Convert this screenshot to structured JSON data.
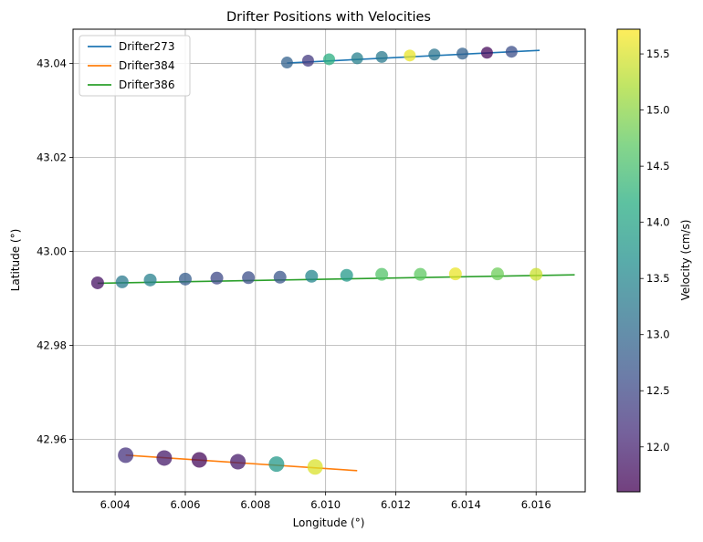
{
  "chart_data": {
    "type": "scatter",
    "title": "Drifter Positions with Velocities",
    "xlabel": "Longitude (°)",
    "ylabel": "Latitude (°)",
    "xlim": [
      6.0028,
      6.0174
    ],
    "ylim": [
      42.9488,
      43.0473
    ],
    "x_ticks": [
      6.004,
      6.006,
      6.008,
      6.01,
      6.012,
      6.014,
      6.016
    ],
    "x_tick_labels": [
      "6.004",
      "6.006",
      "6.008",
      "6.010",
      "6.012",
      "6.014",
      "6.016"
    ],
    "y_ticks": [
      42.96,
      42.98,
      43.0,
      43.02,
      43.04
    ],
    "y_tick_labels": [
      "42.96",
      "42.98",
      "43.00",
      "43.02",
      "43.04"
    ],
    "grid": true,
    "legend_position": "top-left",
    "colorbar": {
      "label": "Velocity (cm/s)",
      "range": [
        11.6,
        15.72
      ],
      "ticks": [
        12.0,
        12.5,
        13.0,
        13.5,
        14.0,
        14.5,
        15.0,
        15.5
      ],
      "tick_labels": [
        "12.0",
        "12.5",
        "13.0",
        "13.5",
        "14.0",
        "14.5",
        "15.0",
        "15.5"
      ],
      "colormap": "viridis"
    },
    "series": [
      {
        "name": "Drifter273",
        "color": "#1f77b4",
        "line": [
          [
            6.0089,
            43.0401
          ],
          [
            6.0161,
            43.0428
          ]
        ],
        "points": [
          {
            "x": 6.0089,
            "y": 43.0402,
            "v": 12.9,
            "s": 13
          },
          {
            "x": 6.0095,
            "y": 43.0406,
            "v": 12.3,
            "s": 13
          },
          {
            "x": 6.0101,
            "y": 43.0409,
            "v": 14.2,
            "s": 13
          },
          {
            "x": 6.0109,
            "y": 43.0411,
            "v": 13.4,
            "s": 13
          },
          {
            "x": 6.0116,
            "y": 43.0414,
            "v": 13.3,
            "s": 13
          },
          {
            "x": 6.0124,
            "y": 43.0417,
            "v": 15.6,
            "s": 13
          },
          {
            "x": 6.0131,
            "y": 43.0419,
            "v": 13.2,
            "s": 13
          },
          {
            "x": 6.0139,
            "y": 43.0421,
            "v": 12.9,
            "s": 13
          },
          {
            "x": 6.0146,
            "y": 43.0423,
            "v": 11.7,
            "s": 13
          },
          {
            "x": 6.0153,
            "y": 43.0425,
            "v": 12.6,
            "s": 13
          }
        ]
      },
      {
        "name": "Drifter384",
        "color": "#ff7f0e",
        "line": [
          [
            6.0043,
            42.9566
          ],
          [
            6.0109,
            42.9533
          ]
        ],
        "points": [
          {
            "x": 6.0043,
            "y": 42.9566,
            "v": 12.2,
            "s": 17
          },
          {
            "x": 6.0054,
            "y": 42.956,
            "v": 11.9,
            "s": 17
          },
          {
            "x": 6.0064,
            "y": 42.9556,
            "v": 11.7,
            "s": 17
          },
          {
            "x": 6.0075,
            "y": 42.9552,
            "v": 11.9,
            "s": 17
          },
          {
            "x": 6.0086,
            "y": 42.9547,
            "v": 13.8,
            "s": 17
          },
          {
            "x": 6.0097,
            "y": 42.9541,
            "v": 15.5,
            "s": 17
          }
        ]
      },
      {
        "name": "Drifter386",
        "color": "#2ca02c",
        "line": [
          [
            6.0035,
            42.9932
          ],
          [
            6.0171,
            42.995
          ]
        ],
        "points": [
          {
            "x": 6.0035,
            "y": 42.9933,
            "v": 11.8,
            "s": 14
          },
          {
            "x": 6.0042,
            "y": 42.9935,
            "v": 13.3,
            "s": 14
          },
          {
            "x": 6.005,
            "y": 42.9939,
            "v": 13.4,
            "s": 14
          },
          {
            "x": 6.006,
            "y": 42.9941,
            "v": 12.8,
            "s": 14
          },
          {
            "x": 6.0069,
            "y": 42.9943,
            "v": 12.5,
            "s": 14
          },
          {
            "x": 6.0078,
            "y": 42.9944,
            "v": 12.6,
            "s": 14
          },
          {
            "x": 6.0087,
            "y": 42.9945,
            "v": 12.7,
            "s": 14
          },
          {
            "x": 6.0096,
            "y": 42.9947,
            "v": 13.5,
            "s": 14
          },
          {
            "x": 6.0106,
            "y": 42.9949,
            "v": 13.8,
            "s": 14
          },
          {
            "x": 6.0116,
            "y": 42.9951,
            "v": 14.6,
            "s": 14
          },
          {
            "x": 6.0127,
            "y": 42.9951,
            "v": 14.7,
            "s": 14
          },
          {
            "x": 6.0137,
            "y": 42.9952,
            "v": 15.6,
            "s": 14
          },
          {
            "x": 6.0149,
            "y": 42.9952,
            "v": 14.8,
            "s": 14
          },
          {
            "x": 6.016,
            "y": 42.9951,
            "v": 15.4,
            "s": 14
          }
        ]
      }
    ]
  }
}
